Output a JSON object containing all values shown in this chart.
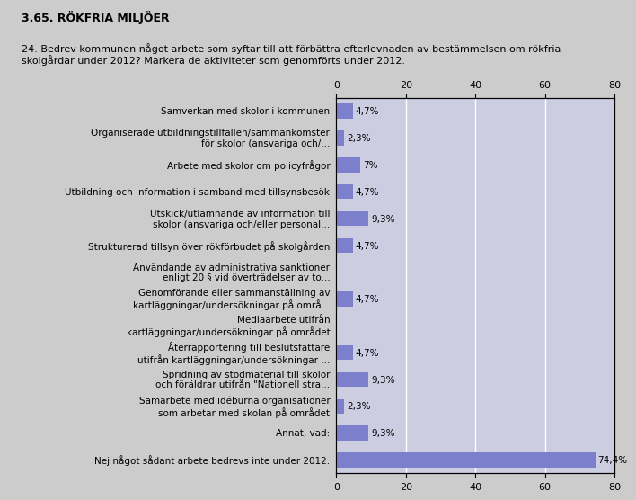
{
  "title": "3.65. RÖKFRIA MILJÖER",
  "subtitle": "24. Bedrev kommunen något arbete som syftar till att förbättra efterlevnaden av bestämmelsen om rökfria\nskolgårdar under 2012? Markera de aktiviteter som genomförts under 2012.",
  "categories": [
    "Samverkan med skolor i kommunen",
    "Organiserade utbildningstillfällen/sammankomster\nför skolor (ansvariga och/...",
    "Arbete med skolor om policyfrågor",
    "Utbildning och information i samband med tillsynsbesök",
    "Utskick/utlämnande av information till\nskolor (ansvariga och/eller personal...",
    "Strukturerad tillsyn över rökförbudet på skolgården",
    "Användande av administrativa sanktioner\nenligt 20 § vid överträdelser av to...",
    "Genomförande eller sammanställning av\nkartläggningar/undersökningar på områ...",
    "Mediaarbete utifrån\nkartläggningar/undersökningar på området",
    "Återrapportering till beslutsfattare\nutifrån kartläggningar/undersökningar ...",
    "Spridning av stödmaterial till skolor\noch föräldrar utifrån \"Nationell stra...",
    "Samarbete med idéburna organisationer\nsom arbetar med skolan på området",
    "Annat, vad:",
    "Nej något sådant arbete bedrevs inte under 2012."
  ],
  "values": [
    4.7,
    2.3,
    7.0,
    4.7,
    9.3,
    4.7,
    0.0,
    4.7,
    0.0,
    4.7,
    9.3,
    2.3,
    9.3,
    74.4
  ],
  "labels": [
    "4,7%",
    "2,3%",
    "7%",
    "4,7%",
    "9,3%",
    "4,7%",
    "",
    "4,7%",
    "",
    "4,7%",
    "9,3%",
    "2,3%",
    "9,3%",
    "74,4%"
  ],
  "bar_color": "#7b7fcc",
  "outer_background": "#cccccc",
  "plot_background": "#cccde0",
  "xlim": [
    0,
    80
  ],
  "xticks": [
    0,
    20,
    40,
    60,
    80
  ],
  "grid_color": "#ffffff",
  "title_fontsize": 9,
  "subtitle_fontsize": 8,
  "label_fontsize": 7.5,
  "tick_fontsize": 8,
  "bar_height": 0.55
}
